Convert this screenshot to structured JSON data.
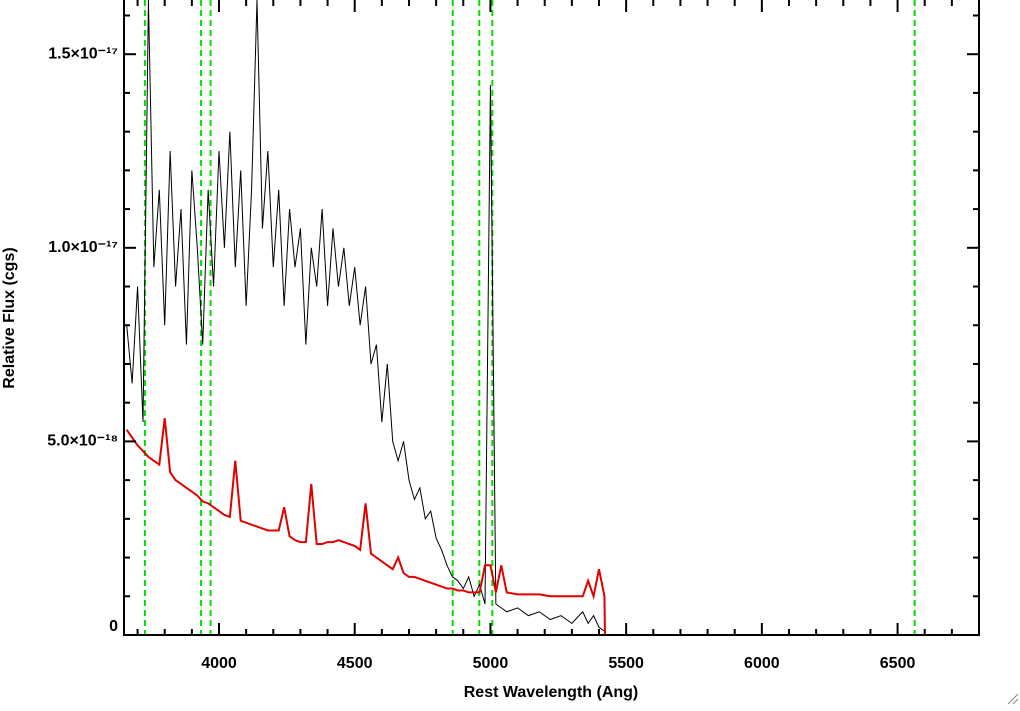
{
  "chart_data": {
    "type": "line",
    "x_label": "Rest Wavelength (Ang)",
    "y_label": "Relative Flux (cgs)",
    "xlim": [
      3650,
      6800
    ],
    "ylim": [
      0,
      1.64e-17
    ],
    "xticks": [
      4000,
      4500,
      5000,
      5500,
      6000,
      6500
    ],
    "yticks": [
      0,
      {
        "value": 5e-18,
        "label": "5.0×10⁻¹⁸"
      },
      {
        "value": 1e-17,
        "label": "1.0×10⁻¹⁷"
      },
      {
        "value": 1.5e-17,
        "label": "1.5×10⁻¹⁷"
      }
    ],
    "xminorticks": [
      3700,
      3800,
      3900,
      4100,
      4200,
      4300,
      4400,
      4600,
      4700,
      4800,
      4900,
      5100,
      5200,
      5300,
      5400,
      5600,
      5700,
      5800,
      5900,
      6100,
      6200,
      6300,
      6400,
      6600,
      6700
    ],
    "yminorticks": [
      1e-18,
      2e-18,
      3e-18,
      4e-18,
      6e-18,
      7e-18,
      8e-18,
      9e-18,
      1.1e-17,
      1.2e-17,
      1.3e-17,
      1.4e-17,
      1.6e-17
    ],
    "vlines": [
      3727,
      3934,
      3969,
      4861,
      4959,
      5007,
      6563
    ],
    "vline_color": "#00dd00",
    "x": [
      3660,
      3680,
      3700,
      3720,
      3740,
      3760,
      3780,
      3800,
      3820,
      3840,
      3860,
      3880,
      3900,
      3920,
      3940,
      3960,
      3980,
      4000,
      4020,
      4040,
      4060,
      4080,
      4100,
      4120,
      4140,
      4160,
      4180,
      4200,
      4220,
      4240,
      4260,
      4280,
      4300,
      4320,
      4340,
      4360,
      4380,
      4400,
      4420,
      4440,
      4460,
      4480,
      4500,
      4520,
      4540,
      4560,
      4580,
      4600,
      4620,
      4640,
      4660,
      4680,
      4700,
      4720,
      4740,
      4760,
      4780,
      4800,
      4820,
      4840,
      4860,
      4880,
      4900,
      4920,
      4940,
      4960,
      4980,
      5000,
      5020,
      5040,
      5060,
      5100,
      5140,
      5180,
      5220,
      5260,
      5300,
      5340,
      5360,
      5380,
      5400,
      5420,
      5422,
      6800
    ],
    "series": [
      {
        "color": "#000000",
        "values": [
          8e-18,
          6.5e-18,
          9e-18,
          5.5e-18,
          1.64e-17,
          9.5e-18,
          1.15e-17,
          8e-18,
          1.25e-17,
          9e-18,
          1.1e-17,
          7.5e-18,
          1.2e-17,
          1e-17,
          7.5e-18,
          1.15e-17,
          9e-18,
          1.25e-17,
          1e-17,
          1.3e-17,
          9.5e-18,
          1.2e-17,
          8.5e-18,
          1.15e-17,
          1.64e-17,
          1.05e-17,
          1.25e-17,
          9.5e-18,
          1.15e-17,
          8.5e-18,
          1.1e-17,
          9.5e-18,
          1.05e-17,
          7.5e-18,
          1e-17,
          9e-18,
          1.1e-17,
          8.5e-18,
          1.05e-17,
          9e-18,
          1e-17,
          8.5e-18,
          9.5e-18,
          8e-18,
          9e-18,
          7e-18,
          7.5e-18,
          5.5e-18,
          7e-18,
          5e-18,
          4.5e-18,
          5e-18,
          4e-18,
          3.5e-18,
          3.8e-18,
          3e-18,
          3.2e-18,
          2.5e-18,
          2.2e-18,
          1.8e-18,
          1.5e-18,
          1.4e-18,
          1.2e-18,
          1.5e-18,
          1e-18,
          1.3e-18,
          8e-19,
          1.42e-17,
          8e-19,
          7e-19,
          6e-19,
          7e-19,
          5e-19,
          6e-19,
          4e-19,
          5e-19,
          3e-19,
          6e-19,
          3e-19,
          5e-19,
          2e-19,
          1e-19,
          null,
          null
        ]
      },
      {
        "color": "#e00000",
        "values": [
          5.3e-18,
          5.1e-18,
          4.9e-18,
          4.75e-18,
          4.6e-18,
          4.5e-18,
          4.4e-18,
          5.6e-18,
          4.2e-18,
          4e-18,
          3.9e-18,
          3.8e-18,
          3.7e-18,
          3.6e-18,
          3.45e-18,
          3.4e-18,
          3.3e-18,
          3.2e-18,
          3.1e-18,
          3.05e-18,
          4.5e-18,
          2.95e-18,
          2.9e-18,
          2.85e-18,
          2.8e-18,
          2.75e-18,
          2.7e-18,
          2.7e-18,
          2.7e-18,
          3.3e-18,
          2.55e-18,
          2.45e-18,
          2.4e-18,
          2.4e-18,
          3.9e-18,
          2.35e-18,
          2.35e-18,
          2.4e-18,
          2.4e-18,
          2.45e-18,
          2.4e-18,
          2.35e-18,
          2.3e-18,
          2.2e-18,
          3.4e-18,
          2.1e-18,
          2e-18,
          1.9e-18,
          1.8e-18,
          1.7e-18,
          2e-18,
          1.6e-18,
          1.5e-18,
          1.5e-18,
          1.45e-18,
          1.4e-18,
          1.35e-18,
          1.3e-18,
          1.25e-18,
          1.2e-18,
          1.2e-18,
          1.15e-18,
          1.15e-18,
          1.1e-18,
          1.1e-18,
          1.1e-18,
          1.8e-18,
          1.8e-18,
          1.1e-18,
          1.8e-18,
          1.1e-18,
          1.05e-18,
          1.05e-18,
          1.05e-18,
          1e-18,
          1e-18,
          1e-18,
          1e-18,
          1.4e-18,
          1e-18,
          1.7e-18,
          1e-18,
          0,
          0
        ]
      }
    ]
  }
}
